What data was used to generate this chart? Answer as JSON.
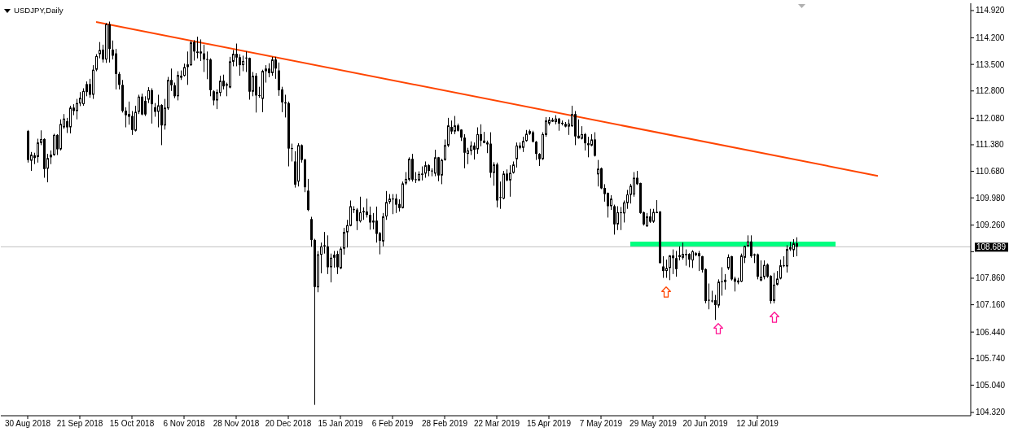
{
  "chart_data": {
    "type": "candlestick",
    "title": "USDJPY,Daily",
    "color": "#000000",
    "categories": [
      "30 Aug 2018",
      null,
      null,
      null,
      null,
      null,
      null,
      null,
      null,
      null,
      null,
      null,
      null,
      null,
      null,
      null,
      "21 Sep 2018",
      null,
      null,
      null,
      null,
      null,
      null,
      null,
      null,
      null,
      null,
      null,
      null,
      null,
      null,
      null,
      "15 Oct 2018",
      null,
      null,
      null,
      null,
      null,
      null,
      null,
      null,
      null,
      null,
      null,
      null,
      null,
      null,
      null,
      "6 Nov 2018",
      null,
      null,
      null,
      null,
      null,
      null,
      null,
      null,
      null,
      null,
      null,
      null,
      null,
      null,
      null,
      "28 Nov 2018",
      null,
      null,
      null,
      null,
      null,
      null,
      null,
      null,
      null,
      null,
      null,
      null,
      null,
      null,
      null,
      "20 Dec 2018",
      null,
      null,
      null,
      null,
      null,
      null,
      null,
      null,
      null,
      null,
      null,
      null,
      null,
      null,
      null,
      "15 Jan 2019",
      null,
      null,
      null,
      null,
      null,
      null,
      null,
      null,
      null,
      null,
      null,
      null,
      null,
      null,
      null,
      "6 Feb 2019",
      null,
      null,
      null,
      null,
      null,
      null,
      null,
      null,
      null,
      null,
      null,
      null,
      null,
      null,
      null,
      "28 Feb 2019",
      null,
      null,
      null,
      null,
      null,
      null,
      null,
      null,
      null,
      null,
      null,
      null,
      null,
      null,
      null,
      "22 Mar 2019",
      null,
      null,
      null,
      null,
      null,
      null,
      null,
      null,
      null,
      null,
      null,
      null,
      null,
      null,
      null,
      "15 Apr 2019",
      null,
      null,
      null,
      null,
      null,
      null,
      null,
      null,
      null,
      null,
      null,
      null,
      null,
      null,
      null,
      "7 May 2019",
      null,
      null,
      null,
      null,
      null,
      null,
      null,
      null,
      null,
      null,
      null,
      null,
      null,
      null,
      null,
      "29 May 2019",
      null,
      null,
      null,
      null,
      null,
      null,
      null,
      null,
      null,
      null,
      null,
      null,
      null,
      null,
      null,
      "20 Jun 2019",
      null,
      null,
      null,
      null,
      null,
      null,
      null,
      null,
      null,
      null,
      null,
      null,
      null,
      null,
      null,
      "12 Jul 2019",
      null,
      null,
      null,
      null,
      null,
      null,
      null,
      null,
      null,
      null,
      null,
      null,
      null,
      null,
      null,
      null,
      null,
      null,
      null,
      null,
      null,
      null,
      null,
      null,
      null,
      null,
      null,
      null,
      null,
      null,
      null,
      null,
      null,
      null,
      null,
      null,
      null,
      null,
      null,
      null,
      null,
      null,
      null,
      null,
      null,
      null,
      null,
      null,
      null,
      null,
      null,
      null,
      null,
      null,
      null,
      null,
      null,
      null,
      null,
      null,
      null,
      null,
      null,
      null,
      null
    ],
    "ohlc": [
      [
        111.74,
        111.77,
        110.91,
        110.98
      ],
      [
        110.96,
        111.19,
        110.69,
        111.12
      ],
      [
        111.1,
        111.17,
        110.87,
        111.03
      ],
      [
        111.06,
        111.54,
        110.91,
        111.44
      ],
      [
        111.43,
        111.76,
        111.37,
        111.53
      ],
      [
        111.53,
        111.55,
        110.51,
        110.74
      ],
      [
        110.75,
        111.14,
        110.39,
        111.03
      ],
      [
        111.05,
        111.23,
        110.87,
        111.12
      ],
      [
        111.11,
        111.67,
        111.09,
        111.64
      ],
      [
        111.64,
        111.66,
        111.11,
        111.26
      ],
      [
        111.26,
        112.05,
        111.23,
        111.93
      ],
      [
        111.84,
        112.19,
        111.8,
        112.07
      ],
      [
        112.0,
        112.09,
        111.69,
        111.84
      ],
      [
        111.84,
        112.41,
        111.68,
        112.36
      ],
      [
        112.36,
        112.45,
        112.16,
        112.27
      ],
      [
        112.27,
        112.59,
        112.05,
        112.48
      ],
      [
        112.47,
        112.77,
        112.4,
        112.62
      ],
      [
        112.45,
        112.87,
        112.41,
        112.8
      ],
      [
        112.98,
        113.05,
        112.66,
        112.77
      ],
      [
        112.98,
        113.12,
        112.62,
        112.7
      ],
      [
        112.7,
        113.48,
        112.59,
        113.36
      ],
      [
        113.36,
        113.77,
        113.32,
        113.72
      ],
      [
        113.77,
        114.09,
        113.66,
        113.88
      ],
      [
        113.89,
        114.02,
        113.55,
        113.63
      ],
      [
        113.63,
        114.59,
        113.54,
        114.56
      ],
      [
        114.56,
        114.63,
        113.55,
        113.91
      ],
      [
        113.89,
        114.13,
        113.63,
        113.73
      ],
      [
        113.79,
        113.91,
        112.84,
        113.25
      ],
      [
        113.25,
        113.3,
        112.84,
        112.96
      ],
      [
        112.96,
        113.09,
        112.23,
        112.27
      ],
      [
        112.28,
        112.37,
        111.84,
        112.16
      ],
      [
        112.12,
        112.52,
        111.91,
        112.19
      ],
      [
        112.14,
        112.27,
        111.64,
        111.77
      ],
      [
        111.75,
        112.41,
        111.73,
        112.25
      ],
      [
        112.25,
        112.7,
        112.19,
        112.65
      ],
      [
        112.65,
        112.73,
        112.16,
        112.18
      ],
      [
        112.54,
        112.66,
        112.14,
        112.18
      ],
      [
        112.57,
        112.9,
        112.48,
        112.82
      ],
      [
        112.82,
        112.87,
        111.94,
        112.45
      ],
      [
        112.37,
        112.48,
        112.12,
        112.25
      ],
      [
        112.25,
        112.7,
        111.84,
        112.42
      ],
      [
        112.43,
        112.45,
        111.37,
        111.89
      ],
      [
        111.89,
        112.59,
        111.78,
        112.36
      ],
      [
        112.34,
        113.17,
        112.3,
        113.09
      ],
      [
        113.09,
        113.39,
        112.8,
        112.95
      ],
      [
        112.95,
        113.02,
        112.61,
        112.66
      ],
      [
        112.66,
        113.32,
        112.55,
        113.22
      ],
      [
        113.15,
        113.34,
        113.09,
        113.2
      ],
      [
        113.2,
        113.52,
        113.18,
        113.43
      ],
      [
        113.43,
        113.84,
        112.96,
        113.5
      ],
      [
        113.48,
        114.13,
        113.46,
        114.08
      ],
      [
        114.09,
        114.14,
        113.6,
        113.84
      ],
      [
        113.8,
        114.23,
        113.66,
        113.84
      ],
      [
        113.84,
        114.16,
        113.59,
        113.79
      ],
      [
        113.79,
        114.02,
        113.3,
        113.63
      ],
      [
        113.64,
        113.84,
        113.11,
        113.63
      ],
      [
        113.63,
        113.66,
        112.66,
        112.82
      ],
      [
        112.79,
        112.82,
        112.42,
        112.55
      ],
      [
        112.55,
        112.84,
        112.32,
        112.77
      ],
      [
        112.75,
        113.2,
        112.66,
        113.07
      ],
      [
        113.07,
        113.23,
        112.84,
        112.92
      ],
      [
        112.94,
        113.02,
        112.66,
        112.98
      ],
      [
        112.89,
        113.7,
        112.87,
        113.58
      ],
      [
        113.57,
        113.88,
        113.45,
        113.78
      ],
      [
        113.78,
        114.05,
        113.45,
        113.68
      ],
      [
        113.69,
        113.77,
        113.2,
        113.48
      ],
      [
        113.48,
        113.73,
        113.32,
        113.59
      ],
      [
        113.68,
        113.84,
        113.3,
        113.67
      ],
      [
        113.67,
        113.68,
        112.57,
        112.78
      ],
      [
        112.78,
        113.3,
        112.66,
        113.2
      ],
      [
        113.2,
        113.27,
        112.23,
        112.68
      ],
      [
        112.69,
        112.91,
        112.62,
        112.67
      ],
      [
        112.59,
        113.36,
        112.24,
        113.33
      ],
      [
        113.32,
        113.48,
        113.02,
        113.39
      ],
      [
        113.39,
        113.53,
        113.16,
        113.27
      ],
      [
        113.27,
        113.7,
        113.2,
        113.63
      ],
      [
        113.63,
        113.7,
        113.12,
        113.39
      ],
      [
        113.34,
        113.55,
        112.67,
        112.82
      ],
      [
        112.84,
        112.91,
        112.24,
        112.5
      ],
      [
        112.5,
        112.7,
        112.1,
        112.47
      ],
      [
        112.48,
        112.52,
        110.81,
        111.28
      ],
      [
        111.29,
        111.41,
        110.94,
        111.28
      ],
      [
        110.94,
        111.21,
        110.25,
        110.33
      ],
      [
        110.41,
        111.42,
        110.28,
        111.37
      ],
      [
        111.37,
        111.39,
        110.91,
        110.98
      ],
      [
        110.99,
        111.01,
        110.13,
        110.26
      ],
      [
        110.17,
        110.48,
        109.63,
        109.66
      ],
      [
        109.42,
        109.48,
        108.69,
        108.87
      ],
      [
        108.87,
        108.9,
        104.52,
        107.63
      ],
      [
        107.62,
        108.58,
        107.49,
        108.49
      ],
      [
        108.48,
        108.8,
        107.99,
        108.7
      ],
      [
        108.73,
        109.08,
        108.51,
        108.7
      ],
      [
        108.7,
        108.99,
        107.97,
        108.15
      ],
      [
        108.15,
        108.51,
        107.75,
        108.4
      ],
      [
        108.4,
        108.58,
        108.14,
        108.48
      ],
      [
        108.5,
        108.58,
        107.97,
        108.15
      ],
      [
        108.12,
        108.69,
        108.1,
        108.64
      ],
      [
        108.64,
        109.19,
        108.48,
        109.08
      ],
      [
        109.07,
        109.4,
        108.67,
        109.26
      ],
      [
        109.24,
        109.91,
        109.23,
        109.76
      ],
      [
        109.68,
        109.76,
        109.58,
        109.66
      ],
      [
        109.67,
        109.71,
        109.13,
        109.37
      ],
      [
        109.36,
        110.01,
        109.33,
        109.6
      ],
      [
        109.6,
        109.73,
        109.4,
        109.63
      ],
      [
        109.62,
        109.96,
        109.46,
        109.53
      ],
      [
        109.53,
        109.75,
        109.14,
        109.33
      ],
      [
        109.33,
        109.58,
        109.15,
        109.38
      ],
      [
        109.38,
        109.75,
        108.8,
        109.03
      ],
      [
        109.05,
        109.08,
        108.49,
        108.85
      ],
      [
        108.83,
        109.58,
        108.7,
        109.49
      ],
      [
        109.49,
        110.16,
        109.4,
        109.87
      ],
      [
        109.87,
        110.08,
        109.82,
        109.96
      ],
      [
        109.96,
        110.08,
        109.55,
        109.94
      ],
      [
        109.96,
        110.08,
        109.58,
        109.8
      ],
      [
        109.82,
        109.94,
        109.62,
        109.71
      ],
      [
        109.71,
        110.41,
        109.7,
        110.36
      ],
      [
        110.36,
        110.66,
        110.32,
        110.48
      ],
      [
        110.46,
        111.05,
        110.42,
        111.01
      ],
      [
        111.01,
        111.14,
        110.41,
        110.46
      ],
      [
        110.47,
        110.66,
        110.37,
        110.46
      ],
      [
        110.44,
        110.68,
        110.42,
        110.61
      ],
      [
        110.6,
        110.81,
        110.44,
        110.62
      ],
      [
        110.62,
        110.94,
        110.51,
        110.84
      ],
      [
        110.84,
        110.87,
        110.55,
        110.69
      ],
      [
        110.7,
        110.76,
        110.55,
        110.69
      ],
      [
        110.62,
        111.25,
        110.55,
        111.05
      ],
      [
        111.05,
        111.06,
        110.42,
        110.57
      ],
      [
        110.57,
        111.01,
        110.34,
        110.98
      ],
      [
        110.98,
        111.52,
        110.96,
        111.37
      ],
      [
        111.36,
        112.09,
        111.32,
        111.89
      ],
      [
        111.85,
        112.02,
        111.66,
        111.73
      ],
      [
        111.73,
        112.14,
        111.66,
        111.89
      ],
      [
        111.89,
        111.94,
        111.73,
        111.75
      ],
      [
        111.78,
        111.79,
        111.48,
        111.57
      ],
      [
        111.57,
        111.66,
        110.76,
        111.17
      ],
      [
        111.14,
        111.3,
        110.87,
        111.23
      ],
      [
        111.22,
        111.47,
        111.11,
        111.36
      ],
      [
        111.36,
        111.44,
        110.99,
        111.25
      ],
      [
        111.26,
        111.84,
        111.14,
        111.66
      ],
      [
        111.66,
        111.92,
        111.34,
        111.49
      ],
      [
        111.49,
        111.72,
        111.42,
        111.43
      ],
      [
        111.44,
        111.49,
        111.16,
        111.39
      ],
      [
        111.41,
        111.71,
        110.51,
        110.64
      ],
      [
        110.64,
        110.92,
        110.3,
        110.86
      ],
      [
        110.86,
        110.91,
        109.73,
        109.91
      ],
      [
        110.0,
        110.41,
        109.69,
        109.98
      ],
      [
        109.96,
        110.69,
        109.94,
        110.62
      ],
      [
        110.62,
        110.73,
        110.42,
        110.44
      ],
      [
        110.44,
        110.84,
        110.01,
        110.64
      ],
      [
        110.64,
        110.94,
        110.62,
        110.86
      ],
      [
        111.0,
        111.44,
        110.78,
        111.36
      ],
      [
        111.36,
        111.44,
        111.26,
        111.3
      ],
      [
        111.3,
        111.59,
        111.19,
        111.48
      ],
      [
        111.48,
        111.77,
        111.46,
        111.67
      ],
      [
        111.67,
        111.78,
        111.64,
        111.74
      ],
      [
        111.71,
        111.75,
        111.44,
        111.46
      ],
      [
        111.46,
        111.48,
        110.98,
        111.14
      ],
      [
        111.14,
        111.16,
        110.82,
        111.0
      ],
      [
        111.0,
        111.71,
        110.98,
        111.66
      ],
      [
        111.64,
        112.11,
        111.59,
        112.02
      ],
      [
        111.94,
        112.11,
        111.89,
        112.04
      ],
      [
        112.04,
        112.09,
        111.98,
        111.99
      ],
      [
        111.98,
        112.16,
        111.92,
        112.07
      ],
      [
        112.07,
        112.09,
        111.75,
        111.94
      ],
      [
        111.96,
        112.02,
        111.89,
        111.93
      ],
      [
        111.86,
        111.98,
        111.84,
        111.93
      ],
      [
        111.86,
        112.05,
        111.64,
        111.94
      ],
      [
        111.87,
        112.41,
        111.85,
        112.19
      ],
      [
        112.19,
        112.27,
        111.37,
        111.6
      ],
      [
        111.62,
        112.05,
        111.54,
        111.55
      ],
      [
        111.54,
        111.87,
        111.52,
        111.66
      ],
      [
        111.66,
        111.69,
        111.23,
        111.42
      ],
      [
        111.42,
        111.59,
        111.05,
        111.37
      ],
      [
        111.36,
        111.66,
        111.34,
        111.52
      ],
      [
        111.52,
        111.71,
        111.07,
        111.09
      ],
      [
        110.6,
        110.98,
        110.28,
        110.75
      ],
      [
        110.76,
        110.78,
        110.21,
        110.23
      ],
      [
        110.24,
        110.34,
        109.88,
        110.08
      ],
      [
        110.11,
        110.12,
        109.46,
        109.76
      ],
      [
        109.76,
        110.05,
        109.66,
        109.96
      ],
      [
        109.76,
        109.8,
        109.01,
        109.28
      ],
      [
        109.28,
        109.76,
        109.13,
        109.6
      ],
      [
        109.6,
        109.74,
        109.13,
        109.59
      ],
      [
        109.57,
        109.91,
        109.33,
        109.86
      ],
      [
        109.84,
        110.19,
        109.69,
        110.07
      ],
      [
        110.06,
        110.35,
        109.83,
        110.3
      ],
      [
        110.07,
        110.66,
        110.01,
        110.51
      ],
      [
        110.51,
        110.69,
        110.32,
        110.34
      ],
      [
        110.37,
        110.38,
        109.56,
        109.58
      ],
      [
        109.6,
        109.62,
        109.25,
        109.28
      ],
      [
        109.23,
        109.58,
        109.21,
        109.49
      ],
      [
        109.49,
        109.69,
        109.32,
        109.35
      ],
      [
        109.35,
        109.69,
        109.32,
        109.61
      ],
      [
        109.6,
        109.92,
        109.58,
        109.61
      ],
      [
        109.62,
        109.63,
        108.25,
        108.26
      ],
      [
        108.17,
        108.44,
        107.87,
        108.05
      ],
      [
        108.05,
        108.35,
        107.87,
        108.13
      ],
      [
        108.13,
        108.47,
        107.81,
        108.46
      ],
      [
        108.46,
        108.62,
        107.97,
        108.39
      ],
      [
        108.39,
        108.58,
        107.9,
        108.1
      ],
      [
        108.42,
        108.7,
        108.33,
        108.47
      ],
      [
        108.4,
        108.8,
        108.35,
        108.5
      ],
      [
        108.48,
        108.62,
        108.19,
        108.5
      ],
      [
        108.5,
        108.52,
        108.15,
        108.35
      ],
      [
        108.33,
        108.6,
        108.13,
        108.57
      ],
      [
        108.47,
        108.55,
        108.44,
        108.52
      ],
      [
        108.52,
        108.58,
        108.05,
        108.44
      ],
      [
        108.44,
        108.45,
        108.01,
        108.08
      ],
      [
        108.1,
        108.12,
        107.2,
        107.26
      ],
      [
        107.29,
        107.72,
        107.04,
        107.27
      ],
      [
        107.27,
        107.53,
        107.22,
        107.25
      ],
      [
        107.28,
        107.42,
        106.76,
        107.15
      ],
      [
        107.14,
        107.83,
        107.08,
        107.77
      ],
      [
        107.78,
        108.15,
        107.4,
        107.77
      ],
      [
        107.76,
        107.97,
        107.56,
        107.82
      ],
      [
        108.12,
        108.49,
        108.08,
        108.42
      ],
      [
        108.44,
        108.45,
        107.8,
        107.83
      ],
      [
        107.85,
        107.9,
        107.51,
        107.77
      ],
      [
        107.75,
        107.87,
        107.7,
        107.8
      ],
      [
        107.77,
        108.51,
        107.76,
        108.46
      ],
      [
        108.4,
        108.72,
        108.26,
        108.71
      ],
      [
        108.71,
        108.99,
        108.68,
        108.83
      ],
      [
        108.83,
        108.99,
        108.4,
        108.44
      ],
      [
        108.49,
        108.51,
        108.26,
        108.46
      ],
      [
        108.49,
        108.51,
        107.83,
        107.9
      ],
      [
        107.8,
        108.33,
        107.78,
        107.9
      ],
      [
        107.89,
        108.33,
        107.83,
        108.21
      ],
      [
        108.22,
        108.25,
        107.87,
        107.9
      ],
      [
        107.92,
        107.94,
        107.19,
        107.26
      ],
      [
        107.26,
        108.0,
        107.2,
        107.69
      ],
      [
        107.69,
        108.05,
        107.67,
        107.85
      ],
      [
        107.85,
        108.35,
        107.83,
        108.2
      ],
      [
        108.2,
        108.44,
        108.15,
        108.18
      ],
      [
        108.17,
        108.73,
        108.01,
        108.63
      ],
      [
        108.62,
        108.82,
        108.58,
        108.68
      ],
      [
        108.6,
        108.89,
        108.42,
        108.78
      ],
      [
        108.78,
        108.94,
        108.44,
        108.69
      ],
      null,
      null,
      null,
      null,
      null,
      null,
      null,
      null,
      null,
      null,
      null,
      null,
      null,
      null,
      null,
      null,
      null,
      null,
      null,
      null,
      null,
      null,
      null,
      null,
      null,
      null,
      null,
      null,
      null,
      null,
      null,
      null,
      null,
      null,
      null,
      null,
      null,
      null,
      null,
      null,
      null,
      null,
      null,
      null,
      null,
      null,
      null,
      null,
      null,
      null,
      null,
      null,
      null
    ],
    "series": [
      {
        "type": "line",
        "color": "#ff4500",
        "values": [
          null,
          null,
          null,
          null,
          null,
          null,
          null,
          null,
          null,
          null,
          null,
          null,
          null,
          null,
          null,
          null,
          null,
          null,
          null,
          null,
          null,
          114.62,
          null,
          null,
          null,
          null,
          null,
          null,
          null,
          null,
          null,
          null,
          null,
          null,
          null,
          null,
          null,
          null,
          null,
          null,
          null,
          null,
          null,
          null,
          null,
          null,
          null,
          null,
          null,
          null,
          null,
          null,
          null,
          null,
          null,
          null,
          null,
          null,
          null,
          null,
          null,
          null,
          null,
          null,
          null,
          null,
          null,
          null,
          null,
          null,
          null,
          null,
          null,
          null,
          null,
          null,
          null,
          null,
          null,
          null,
          null,
          null,
          null,
          null,
          null,
          null,
          null,
          null,
          null,
          null,
          null,
          null,
          null,
          null,
          null,
          null,
          null,
          null,
          null,
          null,
          null,
          null,
          null,
          null,
          null,
          null,
          null,
          null,
          null,
          null,
          null,
          null,
          null,
          null,
          null,
          null,
          null,
          null,
          null,
          null,
          null,
          null,
          null,
          null,
          null,
          null,
          null,
          null,
          null,
          null,
          null,
          null,
          null,
          null,
          null,
          null,
          null,
          null,
          null,
          null,
          null,
          null,
          null,
          null,
          null,
          null,
          null,
          null,
          null,
          null,
          null,
          null,
          null,
          null,
          null,
          null,
          null,
          null,
          null,
          null,
          null,
          null,
          null,
          null,
          null,
          null,
          null,
          null,
          null,
          null,
          null,
          null,
          null,
          null,
          null,
          null,
          null,
          null,
          null,
          null,
          null,
          null,
          null,
          null,
          null,
          null,
          null,
          null,
          null,
          null,
          null,
          null,
          null,
          null,
          null,
          null,
          null,
          null,
          null,
          null,
          null,
          null,
          null,
          null,
          null,
          null,
          null,
          null,
          null,
          null,
          null,
          null,
          null,
          null,
          null,
          null,
          null,
          null,
          null,
          null,
          null,
          null,
          null,
          null,
          null,
          null,
          null,
          null,
          null,
          null,
          null,
          null,
          null,
          null,
          null,
          null,
          null,
          null,
          null,
          null,
          null,
          null,
          null,
          null,
          null,
          null,
          null,
          null,
          null,
          null,
          null,
          null,
          null,
          null,
          null,
          null,
          null,
          null,
          null,
          null,
          null,
          110.56,
          null,
          null,
          null,
          null,
          null,
          null,
          null,
          null,
          null,
          null,
          null,
          null,
          null,
          null,
          null,
          null,
          null,
          null,
          null,
          null,
          null,
          null,
          null,
          null,
          null,
          null,
          null,
          null
        ]
      },
      {
        "type": "line",
        "color": "#00ff7f",
        "values": [
          null,
          null,
          null,
          null,
          null,
          null,
          null,
          null,
          null,
          null,
          null,
          null,
          null,
          null,
          null,
          null,
          null,
          null,
          null,
          null,
          null,
          null,
          null,
          null,
          null,
          null,
          null,
          null,
          null,
          null,
          null,
          null,
          null,
          null,
          null,
          null,
          null,
          null,
          null,
          null,
          null,
          null,
          null,
          null,
          null,
          null,
          null,
          null,
          null,
          null,
          null,
          null,
          null,
          null,
          null,
          null,
          null,
          null,
          null,
          null,
          null,
          null,
          null,
          null,
          null,
          null,
          null,
          null,
          null,
          null,
          null,
          null,
          null,
          null,
          null,
          null,
          null,
          null,
          null,
          null,
          null,
          null,
          null,
          null,
          null,
          null,
          null,
          null,
          null,
          null,
          null,
          null,
          null,
          null,
          null,
          null,
          null,
          null,
          null,
          null,
          null,
          null,
          null,
          null,
          null,
          null,
          null,
          null,
          null,
          null,
          null,
          null,
          null,
          null,
          null,
          null,
          null,
          null,
          null,
          null,
          null,
          null,
          null,
          null,
          null,
          null,
          null,
          null,
          null,
          null,
          null,
          null,
          null,
          null,
          null,
          null,
          null,
          null,
          null,
          null,
          null,
          null,
          null,
          null,
          null,
          null,
          null,
          null,
          null,
          null,
          null,
          null,
          null,
          null,
          null,
          null,
          null,
          null,
          null,
          null,
          null,
          null,
          null,
          null,
          null,
          null,
          null,
          null,
          null,
          null,
          null,
          null,
          null,
          null,
          null,
          null,
          null,
          null,
          null,
          null,
          null,
          null,
          null,
          null,
          null,
          108.76,
          null,
          null,
          null,
          null,
          null,
          null,
          null,
          null,
          null,
          null,
          null,
          null,
          null,
          null,
          null,
          null,
          null,
          null,
          null,
          null,
          null,
          null,
          null,
          null,
          null,
          null,
          null,
          null,
          null,
          null,
          null,
          null,
          null,
          null,
          null,
          null,
          null,
          null,
          null,
          null,
          null,
          null,
          null,
          null,
          null,
          null,
          null,
          null,
          null,
          null,
          null,
          null,
          null,
          null,
          null,
          null,
          null,
          null,
          null,
          null,
          null,
          null,
          108.76,
          null,
          null,
          null,
          null,
          null,
          null,
          null,
          null,
          null,
          null,
          null,
          null,
          null,
          null,
          null,
          null,
          null,
          null,
          null,
          null,
          null,
          null,
          null,
          null,
          null,
          null,
          null,
          null,
          null,
          null,
          null,
          null,
          null,
          null,
          null,
          null,
          null,
          null,
          null,
          null,
          null
        ]
      }
    ],
    "ylim": [
      104.233,
      115.113
    ],
    "yticks": [
      {
        "value": 114.92,
        "label": "114.920"
      },
      {
        "value": 114.2,
        "label": "114.200"
      },
      {
        "value": 113.5,
        "label": "113.500"
      },
      {
        "value": 112.8,
        "label": "112.800"
      },
      {
        "value": 112.08,
        "label": "112.080"
      },
      {
        "value": 111.38,
        "label": "111.380"
      },
      {
        "value": 110.68,
        "label": "110.680"
      },
      {
        "value": 109.98,
        "label": "109.980"
      },
      {
        "value": 109.26,
        "label": "109.260"
      },
      {
        "value": 108.56,
        "label": null
      },
      {
        "value": 107.86,
        "label": "107.860"
      },
      {
        "value": 107.16,
        "label": "107.160"
      },
      {
        "value": 106.44,
        "label": "106.440"
      },
      {
        "value": 105.74,
        "label": "105.740"
      },
      {
        "value": 105.04,
        "label": "105.040"
      },
      {
        "value": 104.32,
        "label": "104.320"
      }
    ],
    "ref_lines": [
      {
        "axis": "y",
        "value": 108.689,
        "label": "108.689",
        "color": "#c0c0c0"
      }
    ]
  }
}
